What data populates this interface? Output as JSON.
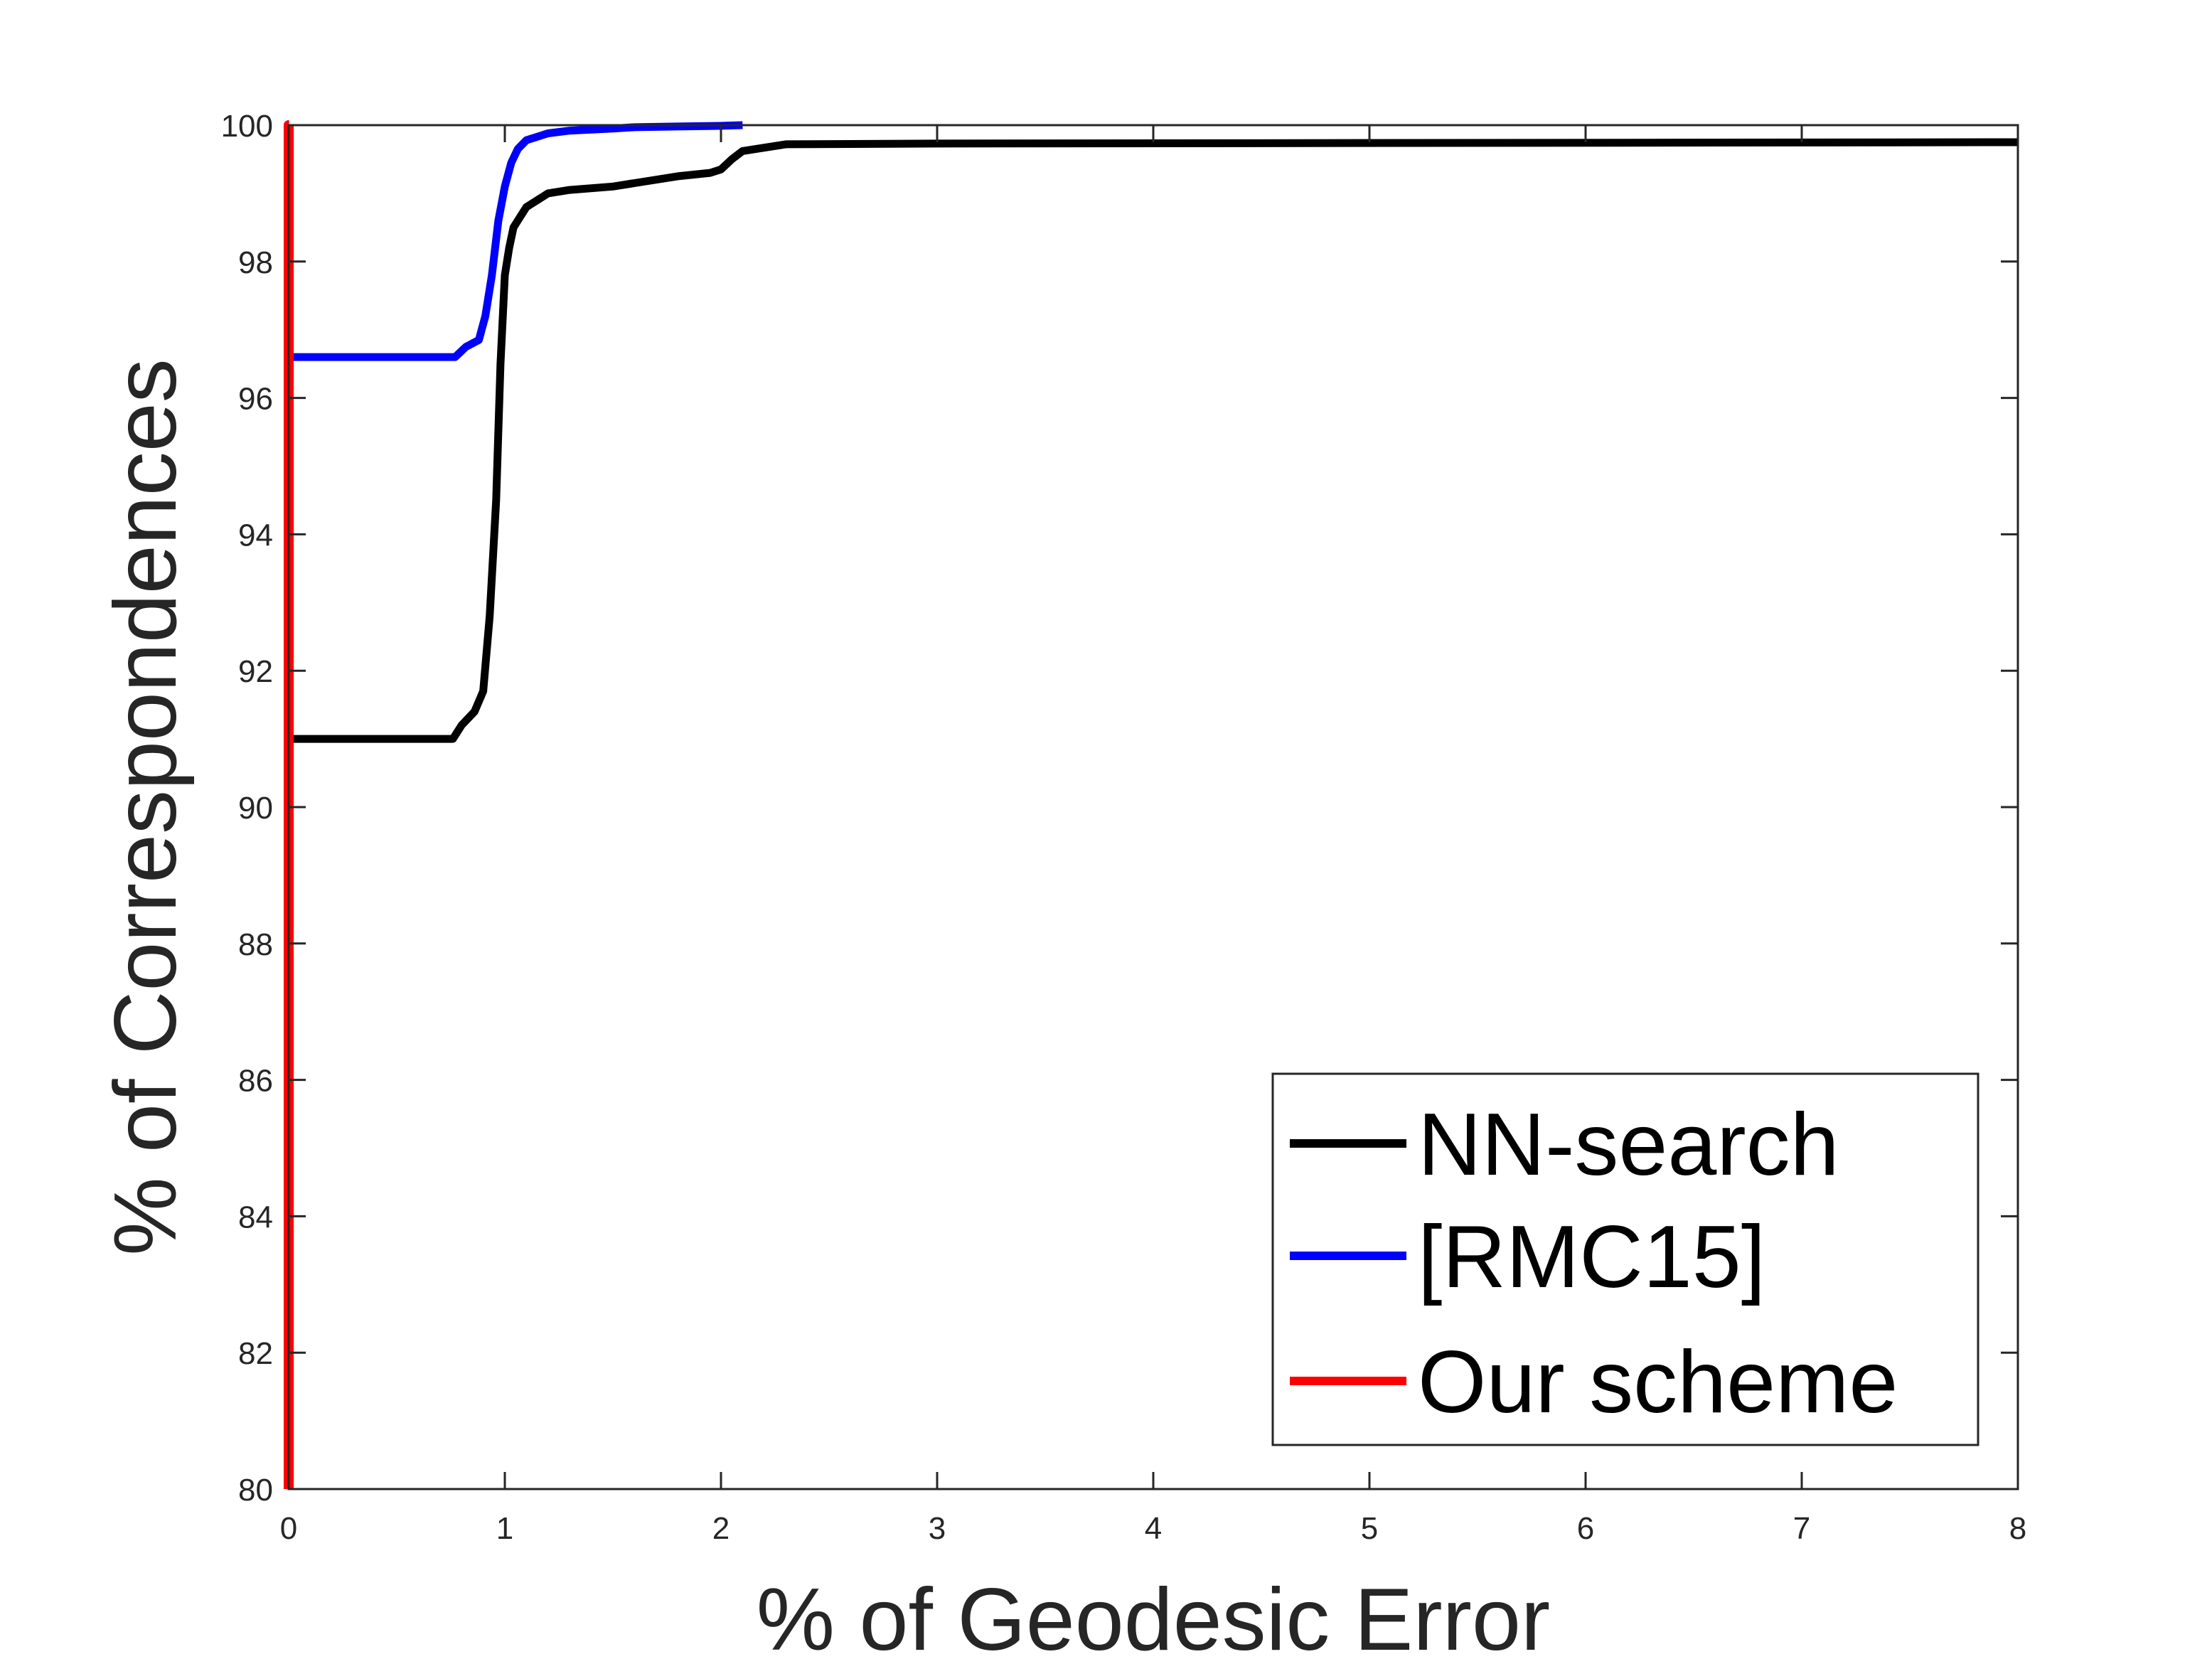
{
  "chart_data": {
    "type": "line",
    "title": "",
    "xlabel": "% of Geodesic Error",
    "ylabel": "% of Correspondences",
    "xlim": [
      0,
      8
    ],
    "ylim": [
      80,
      100
    ],
    "xticks": [
      "0",
      "1",
      "2",
      "3",
      "4",
      "5",
      "6",
      "7",
      "8"
    ],
    "yticks": [
      "80",
      "82",
      "84",
      "86",
      "88",
      "90",
      "92",
      "94",
      "96",
      "98",
      "100"
    ],
    "grid": false,
    "legend_position": "bottom-right",
    "series": [
      {
        "name": "NN-search",
        "color": "#000000",
        "x": [
          0,
          0.5,
          0.76,
          0.8,
          0.86,
          0.9,
          0.93,
          0.96,
          0.98,
          1.0,
          1.02,
          1.04,
          1.06,
          1.1,
          1.2,
          1.3,
          1.5,
          1.6,
          1.8,
          1.95,
          2.0,
          2.05,
          2.1,
          2.3,
          3.0,
          8.0
        ],
        "y": [
          91.0,
          91.0,
          91.0,
          91.2,
          91.4,
          91.7,
          92.8,
          94.5,
          96.5,
          97.8,
          98.2,
          98.5,
          98.6,
          98.8,
          99.0,
          99.05,
          99.1,
          99.15,
          99.25,
          99.3,
          99.35,
          99.5,
          99.62,
          99.72,
          99.73,
          99.75
        ]
      },
      {
        "name": "[RMC15]",
        "color": "#0000ff",
        "x": [
          0,
          0.5,
          0.77,
          0.82,
          0.88,
          0.91,
          0.94,
          0.97,
          1.0,
          1.03,
          1.06,
          1.1,
          1.2,
          1.3,
          1.5,
          1.6,
          1.8,
          2.0,
          2.1
        ],
        "y": [
          96.6,
          96.6,
          96.6,
          96.75,
          96.85,
          97.2,
          97.8,
          98.6,
          99.1,
          99.45,
          99.65,
          99.78,
          99.88,
          99.92,
          99.95,
          99.97,
          99.98,
          99.99,
          100.0
        ]
      },
      {
        "name": "Our scheme",
        "color": "#ff0000",
        "x": [
          0,
          0,
          0.002
        ],
        "y": [
          80,
          100,
          100
        ]
      }
    ]
  }
}
